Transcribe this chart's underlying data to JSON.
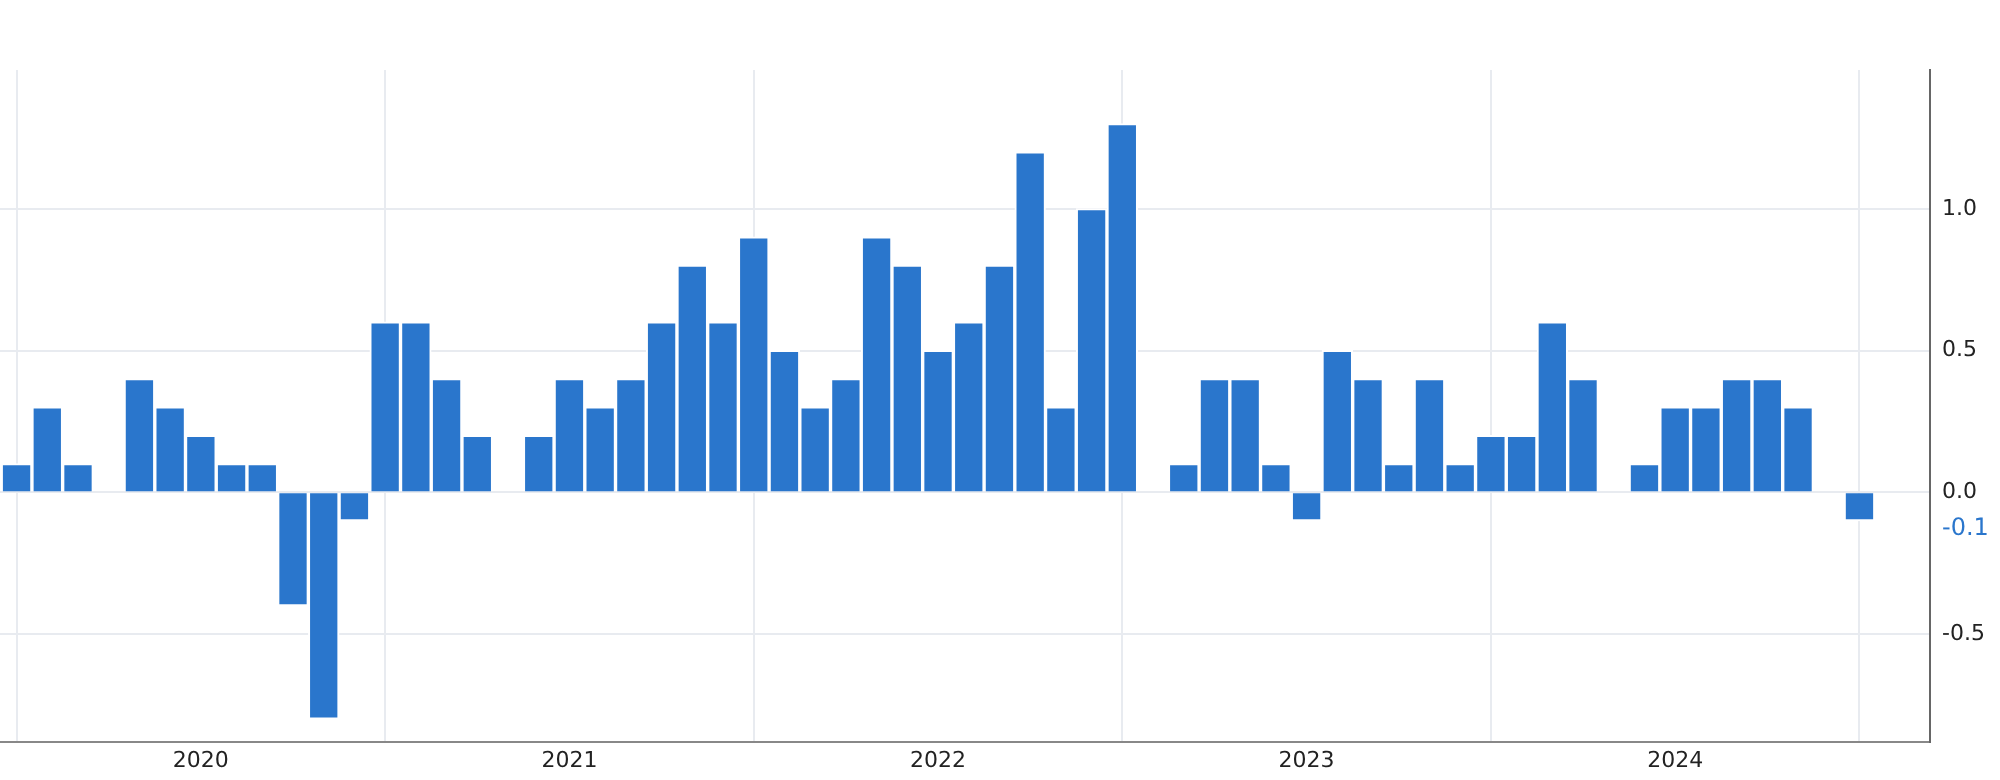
{
  "chart_data": {
    "type": "bar",
    "color": "#2a76cc",
    "x": [
      "2019-07",
      "2019-08",
      "2019-09",
      "2019-10",
      "2019-11",
      "2019-12",
      "2020-01",
      "2020-02",
      "2020-03",
      "2020-04",
      "2020-05",
      "2020-06",
      "2020-07",
      "2020-08",
      "2020-09",
      "2020-10",
      "2020-11",
      "2020-12",
      "2021-01",
      "2021-02",
      "2021-03",
      "2021-04",
      "2021-05",
      "2021-06",
      "2021-07",
      "2021-08",
      "2021-09",
      "2021-10",
      "2021-11",
      "2021-12",
      "2022-01",
      "2022-02",
      "2022-03",
      "2022-04",
      "2022-05",
      "2022-06",
      "2022-07",
      "2022-08",
      "2022-09",
      "2022-10",
      "2022-11",
      "2022-12",
      "2023-01",
      "2023-02",
      "2023-03",
      "2023-04",
      "2023-05",
      "2023-06",
      "2023-07",
      "2023-08",
      "2023-09",
      "2023-10",
      "2023-11",
      "2023-12",
      "2024-01",
      "2024-02",
      "2024-03",
      "2024-04",
      "2024-05",
      "2024-06",
      "2024-07"
    ],
    "values": [
      0.1,
      0.3,
      0.1,
      0,
      0.4,
      0.3,
      0.2,
      0.1,
      0.1,
      -0.4,
      -0.8,
      -0.1,
      0.6,
      0.6,
      0.4,
      0.2,
      0,
      0.2,
      0.4,
      0.3,
      0.4,
      0.6,
      0.8,
      0.6,
      0.9,
      0.5,
      0.3,
      0.4,
      0.9,
      0.8,
      0.5,
      0.6,
      0.8,
      1.2,
      0.3,
      1.0,
      1.3,
      0,
      0.1,
      0.4,
      0.4,
      0.1,
      -0.1,
      0.5,
      0.4,
      0.1,
      0.4,
      0.1,
      0.2,
      0.2,
      0.6,
      0.4,
      0,
      0.1,
      0.3,
      0.3,
      0.4,
      0.4,
      0.3,
      0,
      -0.1
    ],
    "xlim": [
      "2019-06-15",
      "2024-09-10"
    ],
    "xticks": [
      {
        "value": "2020-01",
        "label": "2020"
      },
      {
        "value": "2021-01",
        "label": "2021"
      },
      {
        "value": "2022-01",
        "label": "2022"
      },
      {
        "value": "2023-01",
        "label": "2023"
      },
      {
        "value": "2024-01",
        "label": "2024"
      }
    ],
    "ylim": [
      -0.88,
      1.49
    ],
    "yticks": [
      {
        "value": -0.5,
        "label": "-0.5"
      },
      {
        "value": 0,
        "label": "0.0"
      },
      {
        "value": 0.5,
        "label": "0.5"
      },
      {
        "value": 1,
        "label": "1.0"
      }
    ],
    "annotations": [
      "-0.1"
    ],
    "grid": true,
    "legend": false
  }
}
